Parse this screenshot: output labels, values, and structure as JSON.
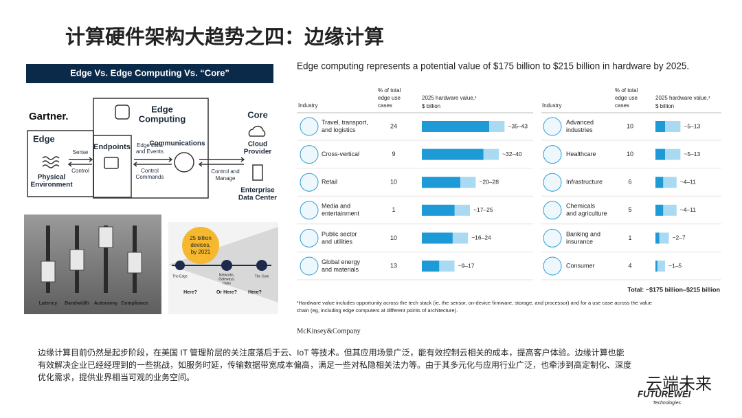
{
  "title": "计算硬件架构大趋势之四：边缘计算",
  "gartner": {
    "header": "Edge Vs. Edge Computing Vs. “Core”",
    "logo": "Gartner.",
    "edge": "Edge",
    "physical": [
      "Physical",
      "Environment"
    ],
    "sense": "Sense",
    "control": "Control",
    "endpoints": "Endpoints",
    "edge_data": [
      "Edge Data",
      "and Events"
    ],
    "control_commands": [
      "Control",
      "Commands"
    ],
    "edge_computing": [
      "Edge",
      "Computing"
    ],
    "communications": "Communications",
    "control_manage": [
      "Control and",
      "Manage"
    ],
    "core": "Core",
    "cloud": [
      "Cloud",
      "Provider"
    ],
    "enterprise": [
      "Enterprise",
      "Data Center"
    ]
  },
  "sliders": [
    "Latency",
    "Bandwidth",
    "Autonomy",
    "Compliance"
  ],
  "devices": {
    "bubble": [
      "25 billion",
      "devices,",
      "by 2021"
    ],
    "edge_node": "The Edge",
    "hub_node": [
      "Networks,",
      "Gateways,",
      "Hubs"
    ],
    "core_node": "The Core",
    "questions": [
      "Here?",
      "Or Here?",
      "Here?"
    ]
  },
  "mckinsey": {
    "headline": "Edge computing represents a potential value of $175 billion to $215 billion in hardware by 2025.",
    "industry_header": "Industry",
    "share_header": [
      "% of total",
      "edge use",
      "cases"
    ],
    "value_header": [
      "2025 hardware value,¹",
      "$ billion"
    ],
    "left_rows": [
      {
        "industry": [
          "Travel, transport,",
          "and logistics"
        ],
        "share": 24,
        "range": "~35–43",
        "low": 35,
        "high": 43
      },
      {
        "industry": [
          "Cross-vertical"
        ],
        "share": 9,
        "range": "~32–40",
        "low": 32,
        "high": 40
      },
      {
        "industry": [
          "Retail"
        ],
        "share": 10,
        "range": "~20–28",
        "low": 20,
        "high": 28
      },
      {
        "industry": [
          "Media and",
          "entertainment"
        ],
        "share": 1,
        "range": "~17–25",
        "low": 17,
        "high": 25
      },
      {
        "industry": [
          "Public sector",
          "and utilities"
        ],
        "share": 10,
        "range": "~16–24",
        "low": 16,
        "high": 24
      },
      {
        "industry": [
          "Global energy",
          "and materials"
        ],
        "share": 13,
        "range": "~9–17",
        "low": 9,
        "high": 17
      }
    ],
    "right_rows": [
      {
        "industry": [
          "Advanced",
          "industries"
        ],
        "share": 10,
        "range": "~5–13",
        "low": 5,
        "high": 13
      },
      {
        "industry": [
          "Healthcare"
        ],
        "share": 10,
        "range": "~5–13",
        "low": 5,
        "high": 13
      },
      {
        "industry": [
          "Infrastructure"
        ],
        "share": 6,
        "range": "~4–11",
        "low": 4,
        "high": 11
      },
      {
        "industry": [
          "Chemicals",
          "and agriculture"
        ],
        "share": 5,
        "range": "~4–11",
        "low": 4,
        "high": 11
      },
      {
        "industry": [
          "Banking and",
          "insurance"
        ],
        "share": 1,
        "range": "~2–7",
        "low": 2,
        "high": 7
      },
      {
        "industry": [
          "Consumer"
        ],
        "share": 4,
        "range": "~1–5",
        "low": 1,
        "high": 5
      }
    ],
    "total": "Total: ~$175 billion–$215 billion",
    "footnote": [
      "¹Hardware value includes opportunity across the tech stack (ie, the sensor, on-device firmware, storage, and processor) and for a use case across the value",
      "chain (eg, including edge computers at different points of architecture)."
    ],
    "source": "McKinsey&Company"
  },
  "paragraph": [
    "边缘计算目前仍然是起步阶段，在美国 IT 管理阶层的关注度落后于云、IoT 等技术。但其应用场景广泛，能有效控制云相关的成本，提高客户体验。边缘计算也能",
    "有效解决企业已经经理到的一些挑战，如服务时延，传输数据带宽成本偏高，满足一些对私隐相关法力等。由于其多元化与应用行业广泛，也牵涉到高定制化、深度",
    "优化需求，提供业界相当可观的业务空间。"
  ],
  "watermark": {
    "name": "云端未来",
    "brand": "FUTUREWEI",
    "sub": "Technologies"
  }
}
